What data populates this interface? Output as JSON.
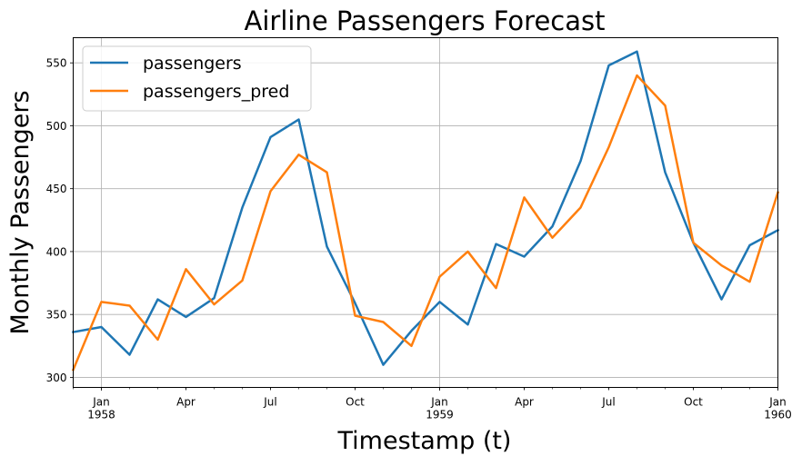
{
  "chart_data": {
    "type": "line",
    "title": "Airline Passengers Forecast",
    "xlabel": "Timestamp (t)",
    "ylabel": "Monthly Passengers",
    "x": [
      "1957-12",
      "1958-01",
      "1958-02",
      "1958-03",
      "1958-04",
      "1958-05",
      "1958-06",
      "1958-07",
      "1958-08",
      "1958-09",
      "1958-10",
      "1958-11",
      "1958-12",
      "1959-01",
      "1959-02",
      "1959-03",
      "1959-04",
      "1959-05",
      "1959-06",
      "1959-07",
      "1959-08",
      "1959-09",
      "1959-10",
      "1959-11",
      "1959-12",
      "1960-01"
    ],
    "xlim": [
      "1957-12",
      "1960-01"
    ],
    "ylim": [
      292,
      570
    ],
    "yticks": [
      300,
      350,
      400,
      450,
      500,
      550
    ],
    "xticks_major": [
      {
        "x": "1958-01",
        "label": [
          "Jan",
          "1958"
        ]
      },
      {
        "x": "1959-01",
        "label": [
          "Jan",
          "1959"
        ]
      },
      {
        "x": "1960-01",
        "label": [
          "Jan",
          "1960"
        ]
      }
    ],
    "xticks_minor": [
      {
        "x": "1958-04",
        "label": [
          "Apr"
        ]
      },
      {
        "x": "1958-07",
        "label": [
          "Jul"
        ]
      },
      {
        "x": "1958-10",
        "label": [
          "Oct"
        ]
      },
      {
        "x": "1959-04",
        "label": [
          "Apr"
        ]
      },
      {
        "x": "1959-07",
        "label": [
          "Jul"
        ]
      },
      {
        "x": "1959-10",
        "label": [
          "Oct"
        ]
      }
    ],
    "grid": true,
    "legend_position": "top-left",
    "series": [
      {
        "name": "passengers",
        "color": "#1f77b4",
        "values": [
          336,
          340,
          318,
          362,
          348,
          363,
          435,
          491,
          505,
          404,
          359,
          310,
          337,
          360,
          342,
          406,
          396,
          420,
          472,
          548,
          559,
          463,
          407,
          362,
          405,
          417
        ]
      },
      {
        "name": "passengers_pred",
        "color": "#ff7f0e",
        "values": [
          306,
          360,
          357,
          330,
          386,
          358,
          377,
          448,
          477,
          463,
          349,
          344,
          325,
          380,
          400,
          371,
          443,
          411,
          435,
          483,
          540,
          516,
          407,
          389,
          376,
          447
        ]
      }
    ]
  }
}
